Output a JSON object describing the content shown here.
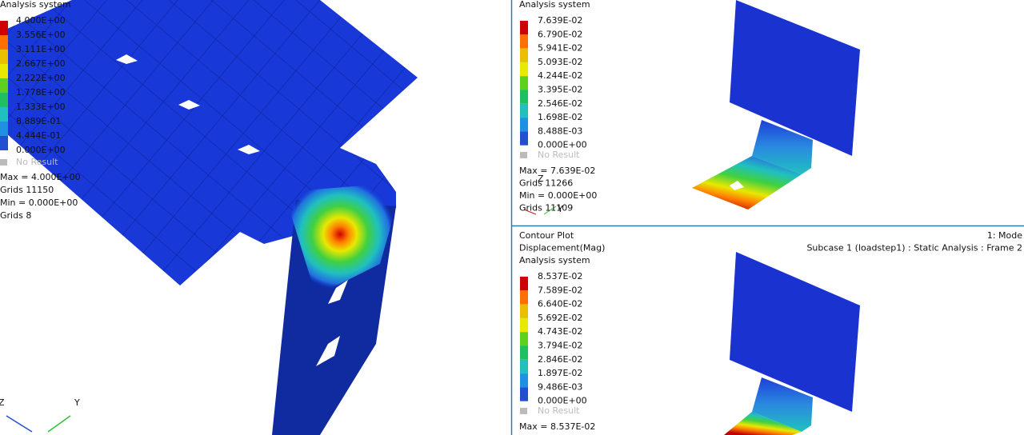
{
  "viewports": [
    {
      "header": [
        "Analysis system"
      ],
      "legend": [
        "4.000E+00",
        "3.556E+00",
        "3.111E+00",
        "2.667E+00",
        "2.222E+00",
        "1.778E+00",
        "1.333E+00",
        "8.889E-01",
        "4.444E-01",
        "0.000E+00"
      ],
      "no_result": "No Result",
      "stats": [
        "Max = 4.000E+00",
        "Grids 11150",
        "Min = 0.000E+00",
        "Grids 8"
      ],
      "triad": [
        "Z",
        "Y"
      ]
    },
    {
      "header": [
        "Analysis system"
      ],
      "legend": [
        "7.639E-02",
        "6.790E-02",
        "5.941E-02",
        "5.093E-02",
        "4.244E-02",
        "3.395E-02",
        "2.546E-02",
        "1.698E-02",
        "8.488E-03",
        "0.000E+00"
      ],
      "no_result": "No Result",
      "stats": [
        "Max = 7.639E-02",
        "Grids 11266",
        "Min = 0.000E+00",
        "Grids 11109"
      ],
      "triad": [
        "Z",
        "Y"
      ]
    },
    {
      "header": [
        "Contour Plot",
        "Displacement(Mag)",
        "Analysis system"
      ],
      "info": [
        "1: Mode",
        "Subcase 1 (loadstep1) : Static Analysis : Frame 2"
      ],
      "legend": [
        "8.537E-02",
        "7.589E-02",
        "6.640E-02",
        "5.692E-02",
        "4.743E-02",
        "3.794E-02",
        "2.846E-02",
        "1.897E-02",
        "9.486E-03",
        "0.000E+00"
      ],
      "no_result": "No Result",
      "stats": [
        "Max = 8.537E-02"
      ]
    }
  ]
}
